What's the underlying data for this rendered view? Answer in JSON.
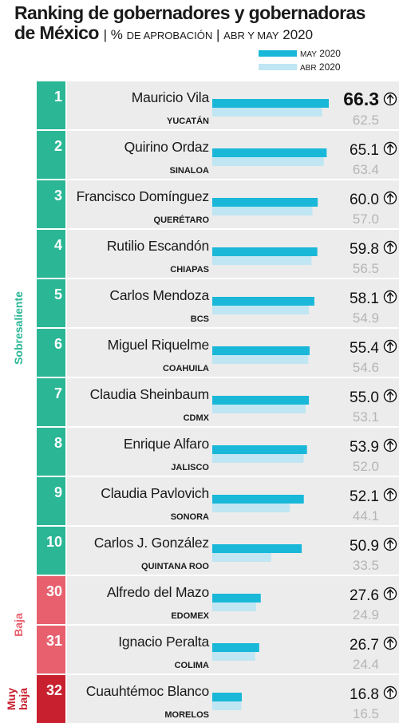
{
  "header": {
    "title": "Ranking de gobernadores y gobernadoras",
    "subtitle_bold": "de México",
    "subtitle_sep1": "|",
    "subtitle_pct": "%",
    "subtitle_metric": "de aprobación",
    "subtitle_sep2": "|",
    "subtitle_period": "abr y may",
    "subtitle_year": "2020"
  },
  "legend": [
    {
      "month": "may",
      "year": "2020",
      "color": "#1ab8d8"
    },
    {
      "month": "abr",
      "year": "2020",
      "color": "#bfe6f2"
    }
  ],
  "colors": {
    "may": "#1ab8d8",
    "abr": "#bfe6f2",
    "sobresaliente": "#2bb796",
    "baja": "#e8606e",
    "muy_baja": "#c8202f",
    "row_bg": "#ececec",
    "arrow": "up-arrow-icon"
  },
  "categories": [
    {
      "label": "Sobresaliente",
      "color": "#2bb796"
    },
    {
      "label": "Baja",
      "color": "#e8606e"
    },
    {
      "label": "Muy baja",
      "color": "#c8202f"
    }
  ],
  "chart_data": {
    "type": "bar",
    "orientation": "horizontal",
    "series": [
      {
        "name": "may 2020",
        "values": [
          66.3,
          65.1,
          60.0,
          59.8,
          58.1,
          55.4,
          55.0,
          53.9,
          52.1,
          50.9,
          27.6,
          26.7,
          16.8
        ]
      },
      {
        "name": "abr 2020",
        "values": [
          62.5,
          63.4,
          57.0,
          56.5,
          54.9,
          54.6,
          53.1,
          52.0,
          44.1,
          33.5,
          24.9,
          24.4,
          16.5
        ]
      }
    ],
    "rows": [
      {
        "rank": "1",
        "name": "Mauricio Vila",
        "state": "YUCATÁN",
        "may": "66.3",
        "abr": "62.5",
        "category": 0
      },
      {
        "rank": "2",
        "name": "Quirino Ordaz",
        "state": "SINALOA",
        "may": "65.1",
        "abr": "63.4",
        "category": 0
      },
      {
        "rank": "3",
        "name": "Francisco Domínguez",
        "state": "QUERÉTARO",
        "may": "60.0",
        "abr": "57.0",
        "category": 0
      },
      {
        "rank": "4",
        "name": "Rutilio Escandón",
        "state": "CHIAPAS",
        "may": "59.8",
        "abr": "56.5",
        "category": 0
      },
      {
        "rank": "5",
        "name": "Carlos Mendoza",
        "state": "BCS",
        "may": "58.1",
        "abr": "54.9",
        "category": 0
      },
      {
        "rank": "6",
        "name": "Miguel Riquelme",
        "state": "COAHUILA",
        "may": "55.4",
        "abr": "54.6",
        "category": 0
      },
      {
        "rank": "7",
        "name": "Claudia Sheinbaum",
        "state": "CDMX",
        "may": "55.0",
        "abr": "53.1",
        "category": 0
      },
      {
        "rank": "8",
        "name": "Enrique Alfaro",
        "state": "JALISCO",
        "may": "53.9",
        "abr": "52.0",
        "category": 0
      },
      {
        "rank": "9",
        "name": "Claudia Pavlovich",
        "state": "SONORA",
        "may": "52.1",
        "abr": "44.1",
        "category": 0
      },
      {
        "rank": "10",
        "name": "Carlos J. González",
        "state": "QUINTANA ROO",
        "may": "50.9",
        "abr": "33.5",
        "category": 0
      },
      {
        "rank": "30",
        "name": "Alfredo del Mazo",
        "state": "EDOMEX",
        "may": "27.6",
        "abr": "24.9",
        "category": 1
      },
      {
        "rank": "31",
        "name": "Ignacio Peralta",
        "state": "COLIMA",
        "may": "26.7",
        "abr": "24.4",
        "category": 1
      },
      {
        "rank": "32",
        "name": "Cuauhtémoc Blanco",
        "state": "MORELOS",
        "may": "16.8",
        "abr": "16.5",
        "category": 2
      }
    ],
    "xlim": [
      0,
      66.3
    ]
  }
}
